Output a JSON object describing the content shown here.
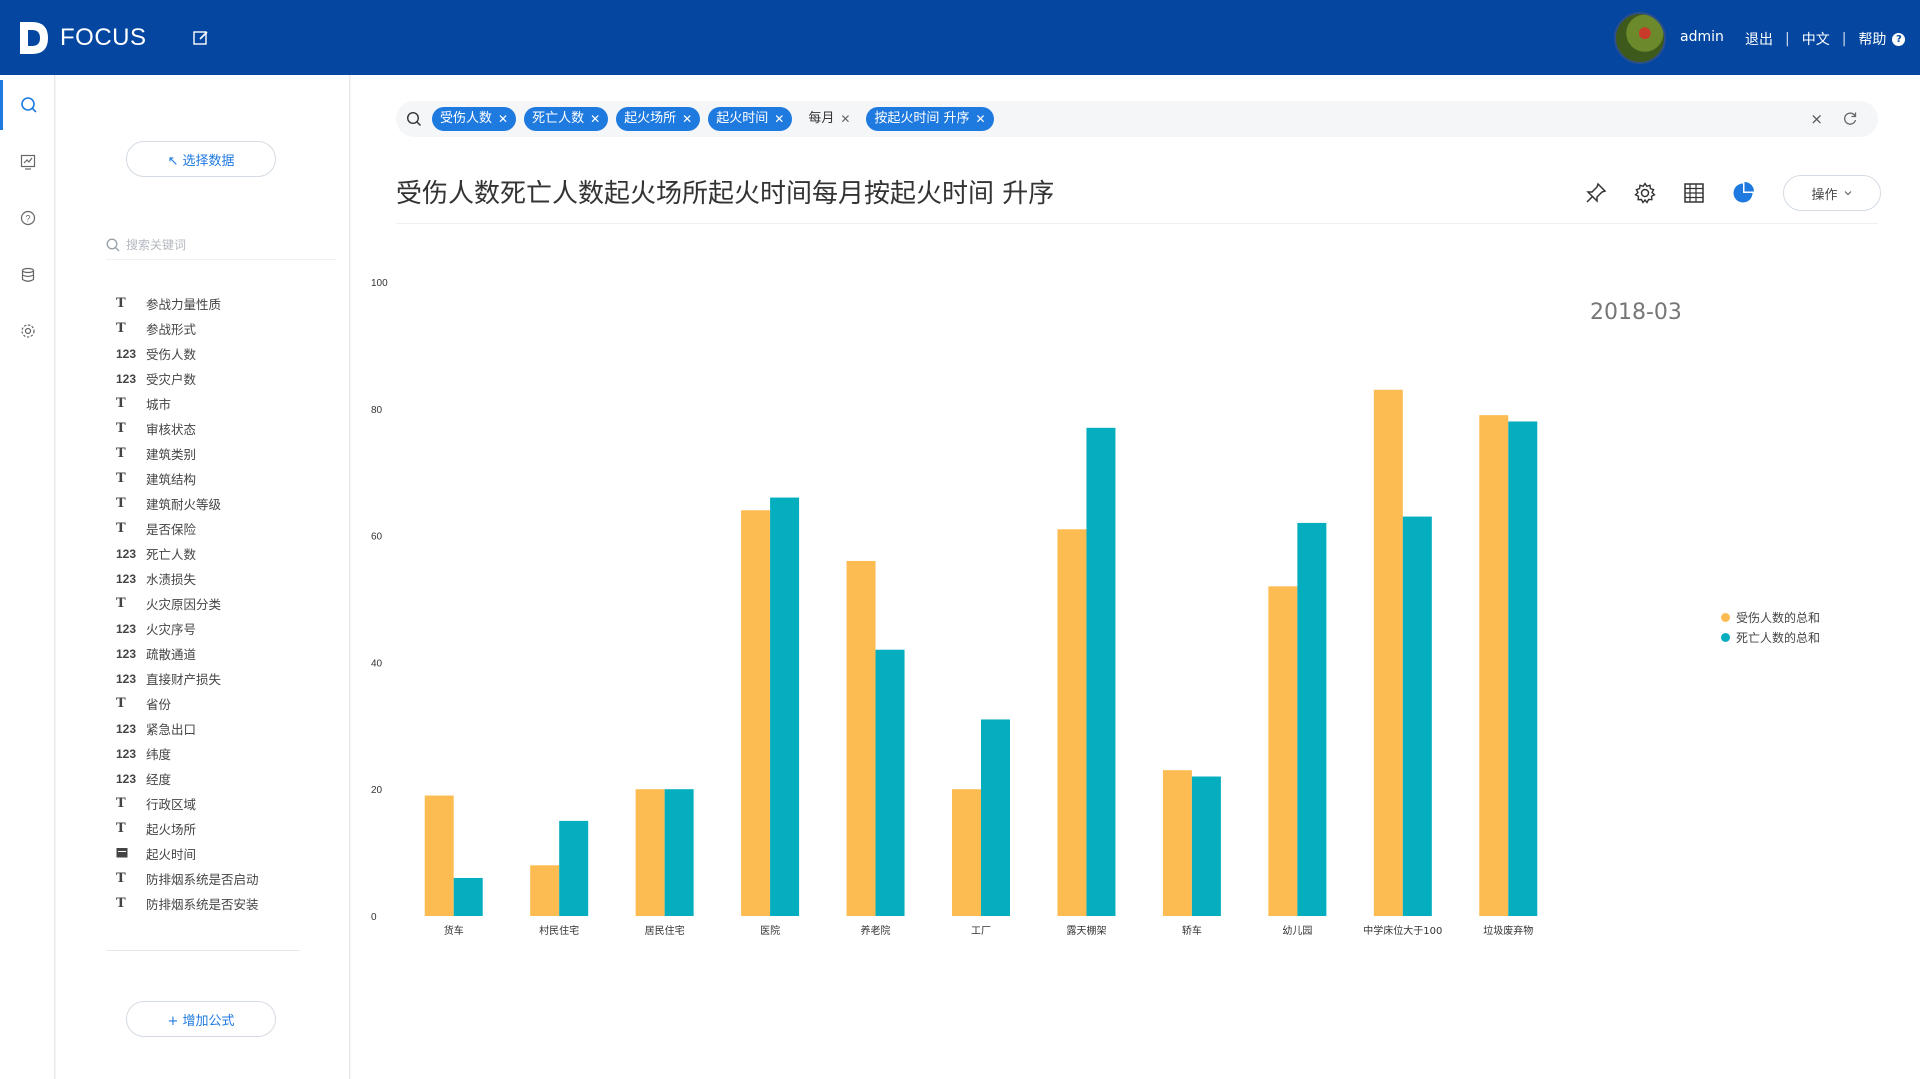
{
  "header": {
    "app_name": "FOCUS",
    "user": "admin",
    "logout": "退出",
    "language": "中文",
    "help": "帮助",
    "help_badge": "?"
  },
  "panel": {
    "select_data": "↖ 选择数据",
    "search_placeholder": "搜索关键词",
    "add_formula": "+ 增加公式",
    "fields": [
      {
        "type": "T",
        "name": "参战力量性质"
      },
      {
        "type": "T",
        "name": "参战形式"
      },
      {
        "type": "123",
        "name": "受伤人数"
      },
      {
        "type": "123",
        "name": "受灾户数"
      },
      {
        "type": "T",
        "name": "城市"
      },
      {
        "type": "T",
        "name": "审核状态"
      },
      {
        "type": "T",
        "name": "建筑类别"
      },
      {
        "type": "T",
        "name": "建筑结构"
      },
      {
        "type": "T",
        "name": "建筑耐火等级"
      },
      {
        "type": "T",
        "name": "是否保险"
      },
      {
        "type": "123",
        "name": "死亡人数"
      },
      {
        "type": "123",
        "name": "水渍损失"
      },
      {
        "type": "T",
        "name": "火灾原因分类"
      },
      {
        "type": "123",
        "name": "火灾序号"
      },
      {
        "type": "123",
        "name": "疏散通道"
      },
      {
        "type": "123",
        "name": "直接财产损失"
      },
      {
        "type": "T",
        "name": "省份"
      },
      {
        "type": "123",
        "name": "紧急出口"
      },
      {
        "type": "123",
        "name": "纬度"
      },
      {
        "type": "123",
        "name": "经度"
      },
      {
        "type": "T",
        "name": "行政区域"
      },
      {
        "type": "T",
        "name": "起火场所"
      },
      {
        "type": "date",
        "name": "起火时间"
      },
      {
        "type": "T",
        "name": "防排烟系统是否启动"
      },
      {
        "type": "T",
        "name": "防排烟系统是否安装"
      }
    ]
  },
  "query": {
    "tags": [
      {
        "label": "受伤人数",
        "style": "filled"
      },
      {
        "label": "死亡人数",
        "style": "filled"
      },
      {
        "label": "起火场所",
        "style": "filled"
      },
      {
        "label": "起火时间",
        "style": "filled"
      },
      {
        "label": "每月",
        "style": "plain"
      },
      {
        "label": "按起火时间  升序",
        "style": "filled"
      }
    ],
    "clear_icon": "×"
  },
  "main": {
    "title": "受伤人数死亡人数起火场所起火时间每月按起火时间 升序",
    "operate": "操作",
    "period": "2018-03"
  },
  "chart_data": {
    "type": "bar",
    "categories": [
      "货车",
      "村民住宅",
      "居民住宅",
      "医院",
      "养老院",
      "工厂",
      "露天棚架",
      "轿车",
      "幼儿园",
      "中学床位大于100",
      "垃圾废弃物"
    ],
    "series": [
      {
        "name": "受伤人数的总和",
        "color": "#fdbc52",
        "values": [
          19,
          8,
          20,
          64,
          56,
          20,
          61,
          23,
          52,
          83,
          79
        ]
      },
      {
        "name": "死亡人数的总和",
        "color": "#04aebf",
        "values": [
          6,
          15,
          20,
          66,
          42,
          31,
          77,
          22,
          62,
          63,
          78
        ]
      }
    ],
    "yticks": [
      0,
      20,
      40,
      60,
      80,
      100
    ],
    "ylim": [
      0,
      100
    ],
    "legend_position": "right"
  },
  "colors": {
    "header_bg": "#0446a0",
    "accent": "#1f7ae0"
  }
}
